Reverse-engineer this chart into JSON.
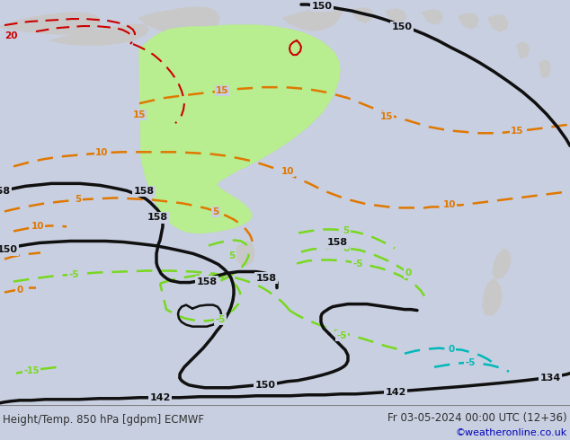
{
  "title_left": "Height/Temp. 850 hPa [gdpm] ECMWF",
  "title_right": "Fr 03-05-2024 00:00 UTC (12+36)",
  "copyright": "©weatheronline.co.uk",
  "bg_ocean": "#c8cfe0",
  "bg_land": "#c8c8c8",
  "bg_land_green": "#d0e8b0",
  "green_fill": "#b8ee90",
  "orange": "#e07800",
  "lime": "#78d820",
  "cyan": "#00b8b8",
  "red": "#cc0000",
  "black": "#101010",
  "white": "#f0f0f0",
  "label_fg": "#303030",
  "copyright_fg": "#0000bb",
  "fig_w": 6.34,
  "fig_h": 4.9,
  "dpi": 100
}
